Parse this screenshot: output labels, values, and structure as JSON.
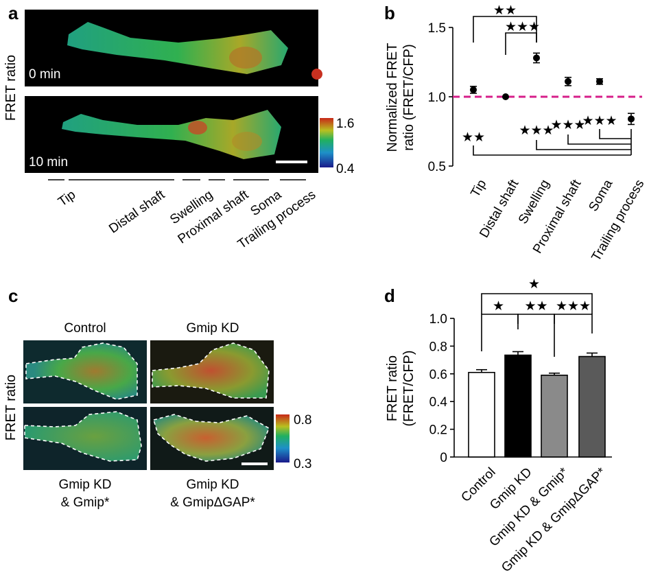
{
  "panel_labels": {
    "a": "a",
    "b": "b",
    "c": "c",
    "d": "d"
  },
  "colors": {
    "jet_low": "#0a1060",
    "jet_mid": "#1fb070",
    "jet_high": "#c8281e",
    "dashed_reference": "#d61f8a",
    "bar_control": "#ffffff",
    "bar_gmip_kd": "#000000",
    "bar_gmip_rescue": "#8a8a8a",
    "bar_gap_rescue": "#5a5a5a",
    "cell_outline": "#ffffff"
  },
  "panel_a": {
    "ylabel": "FRET ratio",
    "time_labels": [
      "0 min",
      "10 min"
    ],
    "colorbar_max": "1.6",
    "colorbar_min": "0.4",
    "regions": [
      "Tip",
      "Distal shaft",
      "Swelling",
      "Proximal shaft",
      "Soma",
      "Trailing process"
    ]
  },
  "panel_c": {
    "ylabel": "FRET ratio",
    "conditions_top": [
      "Control",
      "Gmip KD"
    ],
    "conditions_bottom": [
      [
        "Gmip KD",
        "& Gmip*"
      ],
      [
        "Gmip KD",
        "& GmipΔGAP*"
      ]
    ],
    "colorbar_max": "0.8",
    "colorbar_min": "0.3"
  },
  "chart_data": [
    {
      "panel": "b",
      "type": "scatter",
      "title": "",
      "ylabel": [
        "Normalized FRET",
        "ratio (FRET/CFP)"
      ],
      "categories": [
        "Tip",
        "Distal shaft",
        "Swelling",
        "Proximal shaft",
        "Soma",
        "Trailing process"
      ],
      "values": [
        1.05,
        1.0,
        1.28,
        1.11,
        1.11,
        0.84
      ],
      "errors": [
        0.025,
        0.0,
        0.035,
        0.03,
        0.02,
        0.04
      ],
      "ylim": [
        0.5,
        1.5
      ],
      "yticks": [
        "0.5",
        "1.0",
        "1.5"
      ],
      "reference_line": 1.0,
      "significance": [
        {
          "from": "Tip",
          "to": "Swelling",
          "label": "★★"
        },
        {
          "from": "Distal shaft",
          "to": "Swelling",
          "label": "★★★"
        },
        {
          "from": "Tip",
          "to": "Trailing process",
          "label": "★★"
        },
        {
          "from": "Swelling",
          "to": "Trailing process",
          "label": "★★★"
        },
        {
          "from": "Proximal shaft",
          "to": "Trailing process",
          "label": "★★★"
        },
        {
          "from": "Soma",
          "to": "Trailing process",
          "label": "★★★"
        }
      ]
    },
    {
      "panel": "d",
      "type": "bar",
      "title": "",
      "ylabel": [
        "FRET ratio",
        "(FRET/CFP)"
      ],
      "categories": [
        "Control",
        "Gmip KD",
        "Gmip KD & Gmip*",
        "Gmip KD & GmipΔGAP*"
      ],
      "values": [
        0.61,
        0.735,
        0.59,
        0.725
      ],
      "errors": [
        0.02,
        0.025,
        0.015,
        0.025
      ],
      "ylim": [
        0,
        1.0
      ],
      "yticks": [
        "0",
        "0.2",
        "0.4",
        "0.6",
        "0.8",
        "1.0"
      ],
      "significance": [
        {
          "from": "Control",
          "to": "Gmip KD",
          "label": "★"
        },
        {
          "from": "Gmip KD",
          "to": "Gmip KD & Gmip*",
          "label": "★★"
        },
        {
          "from": "Gmip KD & Gmip*",
          "to": "Gmip KD & GmipΔGAP*",
          "label": "★★★"
        },
        {
          "from": "Control",
          "to": "Gmip KD & GmipΔGAP*",
          "label": "★"
        }
      ]
    }
  ]
}
